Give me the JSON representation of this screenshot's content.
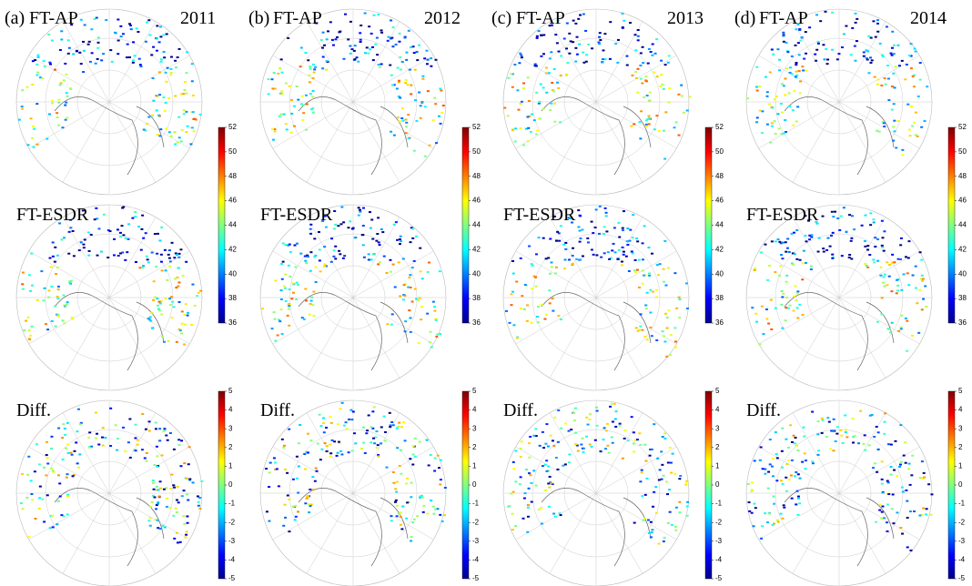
{
  "figure": {
    "columns": [
      {
        "label": "(a)",
        "year": "2011"
      },
      {
        "label": "(b)",
        "year": "2012"
      },
      {
        "label": "(c)",
        "year": "2013"
      },
      {
        "label": "(d)",
        "year": "2014"
      }
    ],
    "rows": [
      "FT-AP",
      "FT-ESDR",
      "Diff."
    ],
    "colorbars": {
      "main": {
        "lim": [
          36,
          52
        ],
        "ticks": [
          36,
          38,
          40,
          42,
          44,
          46,
          48,
          50,
          52
        ]
      },
      "diff": {
        "lim": [
          -5,
          5
        ],
        "ticks": [
          -5,
          -4,
          -3,
          -2,
          -1,
          0,
          1,
          2,
          3,
          4,
          5
        ]
      }
    }
  }
}
